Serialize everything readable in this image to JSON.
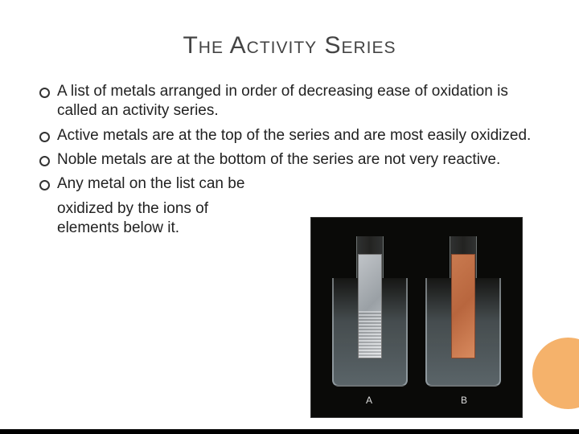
{
  "title": "The Activity Series",
  "bullets": [
    "A list of metals arranged in order of decreasing ease of oxidation is called an activity series.",
    "Active metals are at the top of the series and are most easily oxidized.",
    "Noble metals are at the bottom of the series are not very reactive.",
    "Any metal on the list can be"
  ],
  "continuation_lines": [
    "oxidized by the ions of",
    "elements below it."
  ],
  "photo": {
    "label_a": "A",
    "label_b": "B",
    "background_color": "#0a0a08",
    "strip_left_color": "#c0c4c8",
    "strip_right_color": "#c97a4f"
  },
  "decoration": {
    "circle_color": "#f5b26b"
  },
  "colors": {
    "title_color": "#444444",
    "text_color": "#222222",
    "background": "#ffffff"
  }
}
